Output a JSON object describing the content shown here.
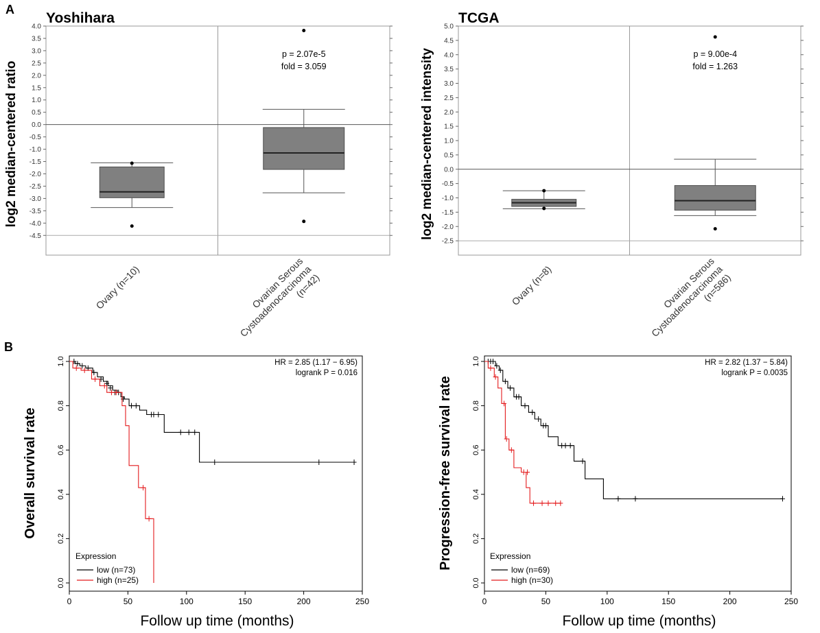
{
  "panel_labels": {
    "a": "A",
    "b": "B"
  },
  "chart_data": [
    {
      "id": "yoshihara",
      "type": "box",
      "title": "Yoshihara",
      "ylabel": "log2 median-centered ratio",
      "ylim": [
        -5.3,
        4.0
      ],
      "yticks": [
        4.0,
        3.5,
        3.0,
        2.5,
        2.0,
        1.5,
        1.0,
        0.5,
        0.0,
        -0.5,
        -1.0,
        -1.5,
        -2.0,
        -2.5,
        -3.0,
        -3.5,
        -4.0,
        -4.5
      ],
      "ytick_labels": [
        "4.0",
        "3.5",
        "3.0",
        "2.5",
        "2.0",
        "1.5",
        "1.0",
        "0.5",
        "0.0",
        "-0.5",
        "-1.0",
        "-1.5",
        "-2.0",
        "-2.5",
        "-3.0",
        "-3.5",
        "-4.0",
        "-4.5"
      ],
      "hlines": [
        0,
        -4.5
      ],
      "categories": [
        "Ovary (n=10)",
        "Ovarian Serous Cystoadenocarcinoma (n=42)"
      ],
      "category_lines": [
        [
          "Ovary (n=10)"
        ],
        [
          "Ovarian Serous",
          "Cystoadenocarcinoma",
          "(n=42)"
        ]
      ],
      "boxes": [
        {
          "whisker_high": -1.55,
          "q3": -1.72,
          "median": -2.73,
          "q1": -2.97,
          "whisker_low": -3.37,
          "outliers": [
            -1.57,
            -4.12
          ]
        },
        {
          "whisker_high": 0.62,
          "q3": -0.12,
          "median": -1.15,
          "q1": -1.82,
          "whisker_low": -2.77,
          "outliers": [
            3.82,
            -3.93
          ]
        }
      ],
      "annotation": [
        "p = 2.07e-5",
        "fold = 3.059"
      ]
    },
    {
      "id": "tcga",
      "type": "box",
      "title": "TCGA",
      "ylabel": "log2 median-centered intensity",
      "ylim": [
        -3.0,
        5.0
      ],
      "yticks": [
        5.0,
        4.5,
        4.0,
        3.5,
        3.0,
        2.5,
        2.0,
        1.5,
        1.0,
        0.5,
        0.0,
        -0.5,
        -1.0,
        -1.5,
        -2.0,
        -2.5
      ],
      "ytick_labels": [
        "5.0",
        "4.5",
        "4.0",
        "3.5",
        "3.0",
        "2.5",
        "2.0",
        "1.5",
        "1.0",
        "0.5",
        "0.0",
        "-0.5",
        "-1.0",
        "-1.5",
        "-2.0",
        "-2.5"
      ],
      "hlines": [
        0,
        -2.5
      ],
      "categories": [
        "Ovary (n=8)",
        "Ovarian Serous Cystoadenocarcinoma (n=586)"
      ],
      "category_lines": [
        [
          "Ovary (n=8)"
        ],
        [
          "Ovarian Serous",
          "Cystoadenocarcinoma",
          "(n=586)"
        ]
      ],
      "boxes": [
        {
          "whisker_high": -0.75,
          "q3": -1.05,
          "median": -1.17,
          "q1": -1.3,
          "whisker_low": -1.38,
          "outliers": [
            -0.75,
            -1.37
          ]
        },
        {
          "whisker_high": 0.35,
          "q3": -0.57,
          "median": -1.1,
          "q1": -1.43,
          "whisker_low": -1.62,
          "outliers": [
            4.62,
            -2.08
          ]
        }
      ],
      "annotation": [
        "p = 9.00e-4",
        "fold = 1.263"
      ]
    },
    {
      "id": "os",
      "type": "line",
      "subtype": "kaplan-meier",
      "xlabel": "Follow up time (months)",
      "ylabel": "Overall survival rate",
      "xlim": [
        0,
        250
      ],
      "ylim": [
        0,
        1.0
      ],
      "xticks": [
        0,
        50,
        100,
        150,
        200,
        250
      ],
      "xtick_labels": [
        "0",
        "50",
        "100",
        "150",
        "200",
        "250"
      ],
      "yticks": [
        0.0,
        0.2,
        0.4,
        0.6,
        0.8,
        1.0
      ],
      "ytick_labels": [
        "0.0",
        "0.2",
        "0.4",
        "0.6",
        "0.8",
        "1.0"
      ],
      "annotation": [
        "HR = 2.85 (1.17 − 6.95)",
        "logrank P = 0.016"
      ],
      "legend_title": "Expression",
      "series": [
        {
          "name": "low (n=73)",
          "color": "#000000",
          "steps": [
            [
              0,
              1.0
            ],
            [
              5,
              0.99
            ],
            [
              9,
              0.98
            ],
            [
              14,
              0.97
            ],
            [
              20,
              0.95
            ],
            [
              24,
              0.93
            ],
            [
              29,
              0.91
            ],
            [
              33,
              0.89
            ],
            [
              37,
              0.87
            ],
            [
              41,
              0.86
            ],
            [
              44,
              0.84
            ],
            [
              47,
              0.83
            ],
            [
              51,
              0.8
            ],
            [
              60,
              0.78
            ],
            [
              66,
              0.76
            ],
            [
              81,
              0.68
            ],
            [
              111,
              0.545
            ],
            [
              244,
              0.545
            ]
          ],
          "censor": [
            [
              4,
              1.0
            ],
            [
              7,
              0.99
            ],
            [
              11,
              0.98
            ],
            [
              16,
              0.97
            ],
            [
              21,
              0.95
            ],
            [
              27,
              0.92
            ],
            [
              32,
              0.9
            ],
            [
              35,
              0.88
            ],
            [
              39,
              0.86
            ],
            [
              42,
              0.86
            ],
            [
              46,
              0.83
            ],
            [
              53,
              0.8
            ],
            [
              57,
              0.8
            ],
            [
              70,
              0.76
            ],
            [
              72,
              0.76
            ],
            [
              76,
              0.76
            ],
            [
              95,
              0.68
            ],
            [
              102,
              0.68
            ],
            [
              107,
              0.68
            ],
            [
              124,
              0.545
            ],
            [
              213,
              0.545
            ],
            [
              243,
              0.545
            ]
          ]
        },
        {
          "name": "high (n=25)",
          "color": "#e41a1c",
          "steps": [
            [
              0,
              1.0
            ],
            [
              3,
              0.97
            ],
            [
              10,
              0.96
            ],
            [
              19,
              0.92
            ],
            [
              26,
              0.89
            ],
            [
              32,
              0.86
            ],
            [
              45,
              0.8
            ],
            [
              48,
              0.71
            ],
            [
              51,
              0.53
            ],
            [
              59,
              0.43
            ],
            [
              65,
              0.29
            ],
            [
              72,
              0.0
            ]
          ],
          "censor": [
            [
              6,
              0.97
            ],
            [
              13,
              0.96
            ],
            [
              22,
              0.92
            ],
            [
              30,
              0.89
            ],
            [
              36,
              0.86
            ],
            [
              40,
              0.86
            ],
            [
              63,
              0.43
            ],
            [
              68,
              0.29
            ]
          ]
        }
      ]
    },
    {
      "id": "pfs",
      "type": "line",
      "subtype": "kaplan-meier",
      "xlabel": "Follow up time (months)",
      "ylabel": "Progression-free survival rate",
      "xlim": [
        0,
        250
      ],
      "ylim": [
        0,
        1.0
      ],
      "xticks": [
        0,
        50,
        100,
        150,
        200,
        250
      ],
      "xtick_labels": [
        "0",
        "50",
        "100",
        "150",
        "200",
        "250"
      ],
      "yticks": [
        0.0,
        0.2,
        0.4,
        0.6,
        0.8,
        1.0
      ],
      "ytick_labels": [
        "0.0",
        "0.2",
        "0.4",
        "0.6",
        "0.8",
        "1.0"
      ],
      "annotation": [
        "HR = 2.82 (1.37 − 5.84)",
        "logrank P = 0.0035"
      ],
      "legend_title": "Expression",
      "series": [
        {
          "name": "low (n=69)",
          "color": "#000000",
          "steps": [
            [
              0,
              1.0
            ],
            [
              9,
              0.98
            ],
            [
              12,
              0.96
            ],
            [
              15,
              0.91
            ],
            [
              19,
              0.88
            ],
            [
              24,
              0.84
            ],
            [
              30,
              0.8
            ],
            [
              36,
              0.77
            ],
            [
              41,
              0.74
            ],
            [
              46,
              0.71
            ],
            [
              52,
              0.66
            ],
            [
              60,
              0.62
            ],
            [
              73,
              0.55
            ],
            [
              82,
              0.47
            ],
            [
              97,
              0.38
            ],
            [
              243,
              0.38
            ]
          ],
          "censor": [
            [
              3,
              1.0
            ],
            [
              5,
              1.0
            ],
            [
              7,
              1.0
            ],
            [
              10,
              0.98
            ],
            [
              13,
              0.96
            ],
            [
              17,
              0.91
            ],
            [
              21,
              0.88
            ],
            [
              26,
              0.84
            ],
            [
              28,
              0.84
            ],
            [
              33,
              0.8
            ],
            [
              39,
              0.77
            ],
            [
              44,
              0.74
            ],
            [
              48,
              0.71
            ],
            [
              50,
              0.71
            ],
            [
              63,
              0.62
            ],
            [
              66,
              0.62
            ],
            [
              70,
              0.62
            ],
            [
              80,
              0.55
            ],
            [
              109,
              0.38
            ],
            [
              123,
              0.38
            ],
            [
              243,
              0.38
            ]
          ]
        },
        {
          "name": "high (n=30)",
          "color": "#e41a1c",
          "steps": [
            [
              0,
              1.0
            ],
            [
              3,
              0.97
            ],
            [
              8,
              0.93
            ],
            [
              11,
              0.88
            ],
            [
              14,
              0.81
            ],
            [
              17,
              0.65
            ],
            [
              20,
              0.6
            ],
            [
              24,
              0.52
            ],
            [
              30,
              0.5
            ],
            [
              34,
              0.43
            ],
            [
              37,
              0.36
            ],
            [
              62,
              0.36
            ]
          ],
          "censor": [
            [
              5,
              0.97
            ],
            [
              9,
              0.93
            ],
            [
              16,
              0.81
            ],
            [
              18,
              0.65
            ],
            [
              22,
              0.6
            ],
            [
              32,
              0.5
            ],
            [
              35,
              0.5
            ],
            [
              40,
              0.36
            ],
            [
              47,
              0.36
            ],
            [
              52,
              0.36
            ],
            [
              58,
              0.36
            ],
            [
              62,
              0.36
            ]
          ]
        }
      ]
    }
  ]
}
